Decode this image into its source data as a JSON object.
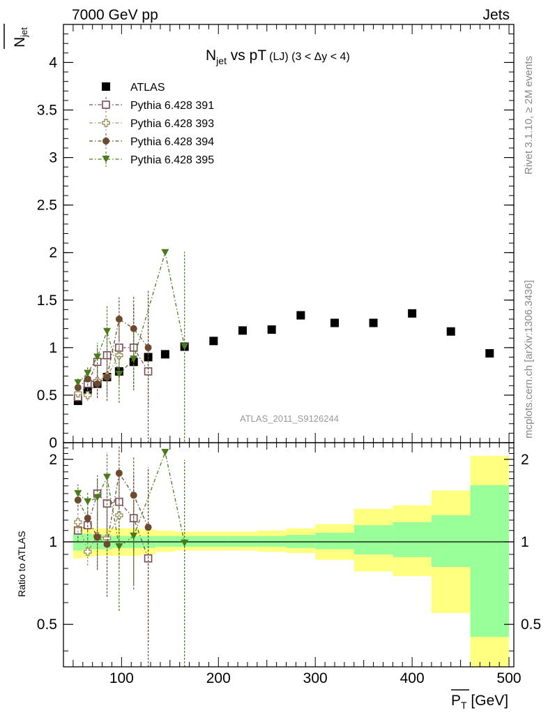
{
  "header": {
    "left": "7000 GeV pp",
    "right": "Jets"
  },
  "side": {
    "top": "Rivet 3.1.10, ≥ 2M events",
    "bottom": "mcplots.cern.ch [arXiv:1306.3436]"
  },
  "chart_data": [
    {
      "type": "scatter",
      "title": "N",
      "title_sub": "jet",
      "title_tail": " vs pT",
      "title_extra": "(LJ) (3 < Δy < 4)",
      "ylabel": "N",
      "ylabel_sub": "jet",
      "watermark": "ATLAS_2011_S9126244",
      "xlim": [
        40,
        505
      ],
      "ylim": [
        0,
        4.4
      ],
      "y_ticks": [
        0,
        0.5,
        1,
        1.5,
        2,
        2.5,
        3,
        3.5,
        4
      ],
      "y_tick_labels": [
        "0",
        "0.5",
        "1",
        "1.5",
        "2",
        "2.5",
        "3",
        "3.5",
        "4"
      ],
      "legend_position": "top-left",
      "series": [
        {
          "name": "ATLAS",
          "color": "#000000",
          "marker": "filled-square",
          "style": "none",
          "points": [
            [
              55,
              0.44
            ],
            [
              65,
              0.55
            ],
            [
              75,
              0.62
            ],
            [
              85,
              0.69
            ],
            [
              97.5,
              0.75
            ],
            [
              112.5,
              0.85
            ],
            [
              127.5,
              0.9
            ],
            [
              145,
              0.93
            ],
            [
              165,
              1.01
            ],
            [
              195,
              1.07
            ],
            [
              225,
              1.18
            ],
            [
              255,
              1.19
            ],
            [
              285,
              1.34
            ],
            [
              320,
              1.26
            ],
            [
              360,
              1.26
            ],
            [
              400,
              1.36
            ],
            [
              440,
              1.17
            ],
            [
              480,
              0.94
            ]
          ]
        },
        {
          "name": "Pythia 6.428 391",
          "color": "#7a4a5c",
          "marker": "open-square",
          "style": "dash-dot",
          "points": [
            [
              55,
              0.48,
              0.04
            ],
            [
              65,
              0.62,
              0.07
            ],
            [
              75,
              0.85,
              0.15
            ],
            [
              85,
              0.92,
              0.25
            ],
            [
              97.5,
              1.0,
              0.35
            ],
            [
              112.5,
              1.0,
              0.45
            ],
            [
              127.5,
              0.75,
              0.8
            ]
          ]
        },
        {
          "name": "Pythia 6.428 393",
          "color": "#a09060",
          "marker": "open-cross",
          "style": "dash-dot",
          "points": [
            [
              55,
              0.52,
              0.05
            ],
            [
              65,
              0.5,
              0.06
            ],
            [
              75,
              0.65,
              0.15
            ],
            [
              85,
              0.7,
              0.2
            ],
            [
              97.5,
              0.92,
              0.3
            ]
          ]
        },
        {
          "name": "Pythia 6.428 394",
          "color": "#6b4a30",
          "marker": "filled-circle",
          "style": "dash-dot",
          "points": [
            [
              55,
              0.58,
              0.05
            ],
            [
              65,
              0.67,
              0.07
            ],
            [
              75,
              0.62,
              0.15
            ],
            [
              85,
              0.69,
              0.25
            ],
            [
              97.5,
              1.3,
              0.23
            ],
            [
              112.5,
              1.2,
              0.35
            ],
            [
              127.5,
              1.0,
              0.6
            ]
          ]
        },
        {
          "name": "Pythia 6.428 395",
          "color": "#4a7a1a",
          "marker": "filled-triangle-down",
          "style": "dash-dot",
          "points": [
            [
              55,
              0.63,
              0.05
            ],
            [
              65,
              0.73,
              0.07
            ],
            [
              75,
              0.9,
              0.15
            ],
            [
              85,
              1.17,
              0.27
            ],
            [
              97.5,
              0.72,
              0.3
            ],
            [
              112.5,
              0.88,
              0.3
            ],
            [
              145,
              2.0,
              0
            ],
            [
              165,
              1.01,
              1.0
            ]
          ]
        }
      ]
    },
    {
      "type": "scatter",
      "xlabel": "P",
      "xlabel_sub": "T",
      "xlabel_unit": " [GeV]",
      "ylabel": "Ratio to ATLAS",
      "scale": "log",
      "xlim": [
        40,
        505
      ],
      "ylim": [
        0.35,
        2.3
      ],
      "x_ticks": [
        100,
        200,
        300,
        400,
        500
      ],
      "x_tick_labels": [
        "100",
        "200",
        "300",
        "400",
        "500"
      ],
      "y_ticks": [
        0.5,
        1,
        2
      ],
      "y_tick_labels": [
        "0.5",
        "1",
        "2"
      ],
      "bands": [
        {
          "x": [
            50,
            60
          ],
          "inner": [
            0.93,
            1.08
          ],
          "outer": [
            0.87,
            1.14
          ]
        },
        {
          "x": [
            60,
            70
          ],
          "inner": [
            0.94,
            1.07
          ],
          "outer": [
            0.88,
            1.13
          ]
        },
        {
          "x": [
            70,
            80
          ],
          "inner": [
            0.94,
            1.06
          ],
          "outer": [
            0.89,
            1.12
          ]
        },
        {
          "x": [
            80,
            90
          ],
          "inner": [
            0.94,
            1.06
          ],
          "outer": [
            0.89,
            1.12
          ]
        },
        {
          "x": [
            90,
            105
          ],
          "inner": [
            0.95,
            1.05
          ],
          "outer": [
            0.89,
            1.12
          ]
        },
        {
          "x": [
            105,
            120
          ],
          "inner": [
            0.95,
            1.05
          ],
          "outer": [
            0.89,
            1.12
          ]
        },
        {
          "x": [
            120,
            135
          ],
          "inner": [
            0.95,
            1.05
          ],
          "outer": [
            0.9,
            1.11
          ]
        },
        {
          "x": [
            135,
            155
          ],
          "inner": [
            0.96,
            1.05
          ],
          "outer": [
            0.92,
            1.1
          ]
        },
        {
          "x": [
            155,
            180
          ],
          "inner": [
            0.96,
            1.05
          ],
          "outer": [
            0.93,
            1.09
          ]
        },
        {
          "x": [
            180,
            210
          ],
          "inner": [
            0.96,
            1.05
          ],
          "outer": [
            0.93,
            1.09
          ]
        },
        {
          "x": [
            210,
            240
          ],
          "inner": [
            0.96,
            1.05
          ],
          "outer": [
            0.93,
            1.09
          ]
        },
        {
          "x": [
            240,
            270
          ],
          "inner": [
            0.96,
            1.05
          ],
          "outer": [
            0.92,
            1.1
          ]
        },
        {
          "x": [
            270,
            300
          ],
          "inner": [
            0.95,
            1.06
          ],
          "outer": [
            0.91,
            1.12
          ]
        },
        {
          "x": [
            300,
            340
          ],
          "inner": [
            0.94,
            1.08
          ],
          "outer": [
            0.86,
            1.16
          ]
        },
        {
          "x": [
            340,
            380
          ],
          "inner": [
            0.9,
            1.15
          ],
          "outer": [
            0.78,
            1.32
          ]
        },
        {
          "x": [
            380,
            420
          ],
          "inner": [
            0.88,
            1.18
          ],
          "outer": [
            0.75,
            1.36
          ]
        },
        {
          "x": [
            420,
            460
          ],
          "inner": [
            0.81,
            1.25
          ],
          "outer": [
            0.55,
            1.54
          ]
        },
        {
          "x": [
            460,
            500
          ],
          "inner": [
            0.45,
            1.61
          ],
          "outer": [
            0.3,
            2.06
          ]
        }
      ],
      "series": [
        {
          "name": "Pythia 6.428 391",
          "color": "#7a4a5c",
          "marker": "open-square",
          "style": "dash-dot",
          "points": [
            [
              55,
              1.1,
              0.1
            ],
            [
              65,
              1.15,
              0.13
            ],
            [
              75,
              1.5,
              0.25
            ],
            [
              85,
              1.38,
              0.3
            ],
            [
              97.5,
              1.4,
              0.45
            ],
            [
              112.5,
              1.22,
              0.55
            ],
            [
              127.5,
              0.87,
              1.0
            ]
          ]
        },
        {
          "name": "Pythia 6.428 393",
          "color": "#a09060",
          "marker": "open-cross",
          "style": "dash-dot",
          "points": [
            [
              55,
              1.18,
              0.1
            ],
            [
              65,
              0.92,
              0.1
            ],
            [
              75,
              1.05,
              0.25
            ],
            [
              85,
              1.03,
              0.3
            ],
            [
              97.5,
              1.25,
              0.45
            ]
          ]
        },
        {
          "name": "Pythia 6.428 394",
          "color": "#6b4a30",
          "marker": "filled-circle",
          "style": "dash-dot",
          "points": [
            [
              55,
              1.42,
              0.12
            ],
            [
              65,
              1.22,
              0.12
            ],
            [
              75,
              1.04,
              0.25
            ],
            [
              85,
              0.98,
              0.35
            ],
            [
              97.5,
              1.78,
              0.45
            ],
            [
              112.5,
              1.48,
              0.55
            ],
            [
              127.5,
              1.13,
              0.7
            ]
          ]
        },
        {
          "name": "Pythia 6.428 395",
          "color": "#4a7a1a",
          "marker": "filled-triangle-down",
          "style": "dash-dot",
          "points": [
            [
              55,
              1.5,
              0.12
            ],
            [
              65,
              1.4,
              0.12
            ],
            [
              75,
              1.45,
              0.25
            ],
            [
              85,
              1.72,
              0.4
            ],
            [
              97.5,
              0.96,
              0.4
            ],
            [
              112.5,
              1.05,
              0.35
            ],
            [
              145,
              2.12,
              0
            ],
            [
              165,
              0.99,
              1.0
            ]
          ]
        }
      ]
    }
  ]
}
